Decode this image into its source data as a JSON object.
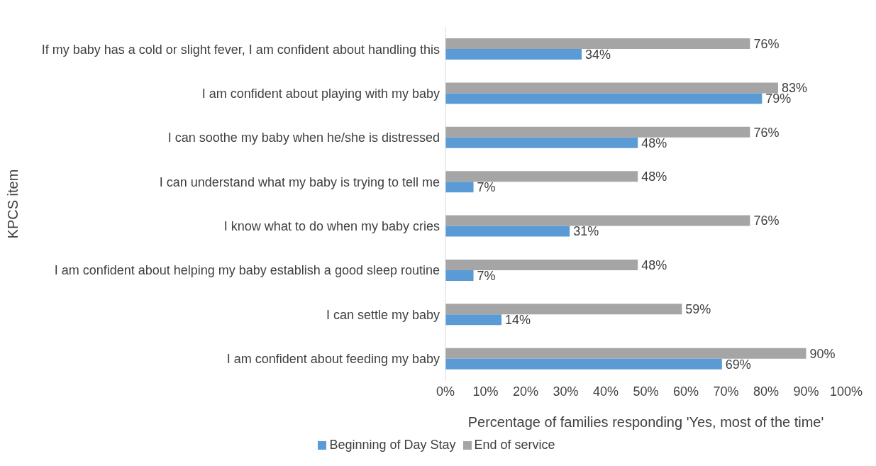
{
  "chart_data": {
    "type": "bar",
    "orientation": "horizontal",
    "xlabel": "Percentage of families responding 'Yes, most of the time'",
    "ylabel": "KPCS item",
    "categories": [
      "If my baby has a cold or slight fever, I am confident about handling this",
      "I am confident about playing with my baby",
      "I can soothe my baby when he/she is distressed",
      "I can understand what my baby is trying to tell me",
      "I know what to do when my baby cries",
      "I am confident about helping my baby establish a good sleep routine",
      "I can settle my baby",
      "I am confident about feeding my baby"
    ],
    "series": [
      {
        "name": "End of service",
        "color": "#a5a5a5",
        "values": [
          76,
          83,
          76,
          48,
          76,
          48,
          59,
          90
        ],
        "value_labels": [
          "76%",
          "83%",
          "76%",
          "48%",
          "76%",
          "48%",
          "59%",
          "90%"
        ]
      },
      {
        "name": "Beginning of Day Stay",
        "color": "#5b9bd5",
        "values": [
          34,
          79,
          48,
          7,
          31,
          7,
          14,
          69
        ],
        "value_labels": [
          "34%",
          "79%",
          "48%",
          "7%",
          "31%",
          "7%",
          "14%",
          "69%"
        ]
      }
    ],
    "xlim": [
      0,
      100
    ],
    "xticks": [
      {
        "value": 0,
        "label": "0%"
      },
      {
        "value": 10,
        "label": "10%"
      },
      {
        "value": 20,
        "label": "20%"
      },
      {
        "value": 30,
        "label": "30%"
      },
      {
        "value": 40,
        "label": "40%"
      },
      {
        "value": 50,
        "label": "50%"
      },
      {
        "value": 60,
        "label": "60%"
      },
      {
        "value": 70,
        "label": "70%"
      },
      {
        "value": 80,
        "label": "80%"
      },
      {
        "value": 90,
        "label": "90%"
      },
      {
        "value": 100,
        "label": "100%"
      }
    ],
    "grid": false,
    "legend": "bottom"
  }
}
